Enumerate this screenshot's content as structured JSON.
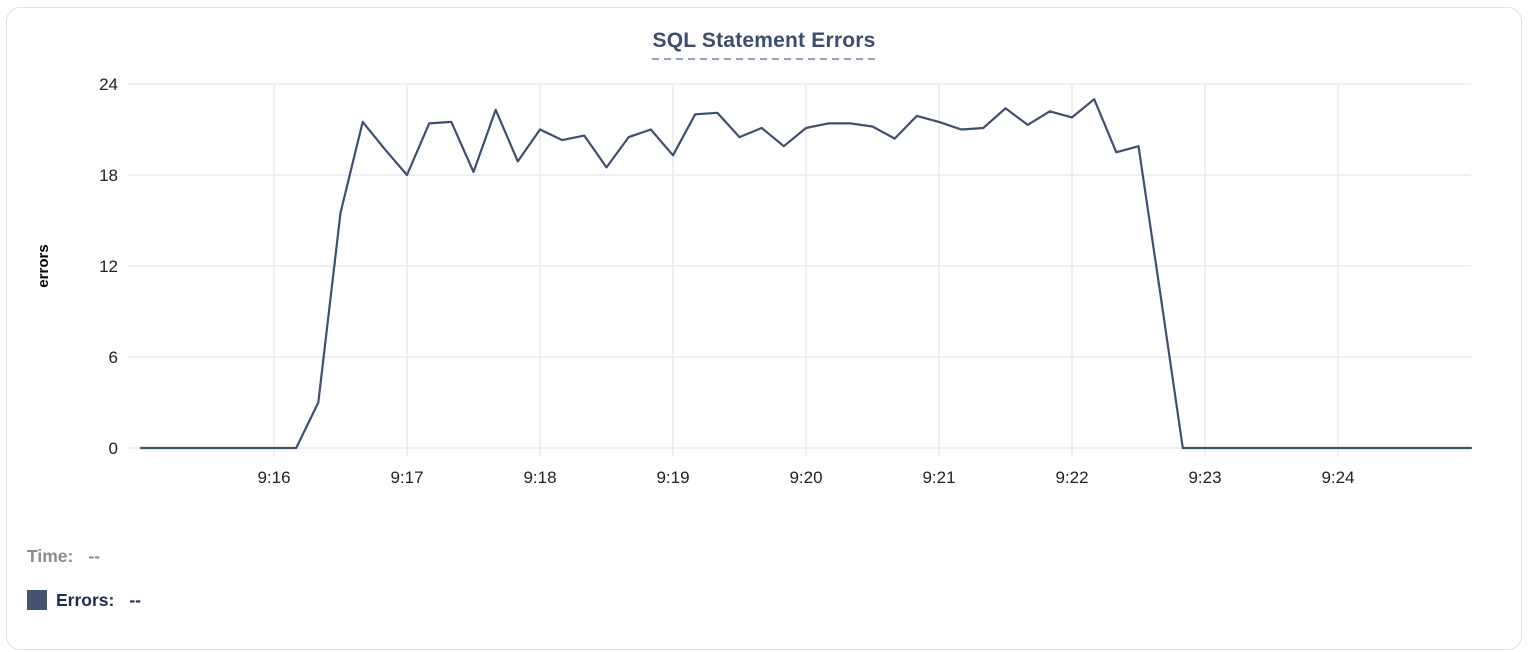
{
  "chart_data": {
    "type": "line",
    "title": "SQL Statement Errors",
    "xlabel": "",
    "ylabel": "errors",
    "ylim": [
      0,
      24
    ],
    "y_ticks": [
      0,
      6,
      12,
      18,
      24
    ],
    "x_range": [
      "9:15:00",
      "9:25:00"
    ],
    "x_tick_labels": [
      "9:16",
      "9:17",
      "9:18",
      "9:19",
      "9:20",
      "9:21",
      "9:22",
      "9:23",
      "9:24"
    ],
    "grid": "on",
    "interval_seconds": 10,
    "series": [
      {
        "name": "Errors",
        "x": [
          "9:15:00",
          "9:15:10",
          "9:15:20",
          "9:15:30",
          "9:15:40",
          "9:15:50",
          "9:16:00",
          "9:16:10",
          "9:16:20",
          "9:16:30",
          "9:16:40",
          "9:16:50",
          "9:17:00",
          "9:17:10",
          "9:17:20",
          "9:17:30",
          "9:17:40",
          "9:17:50",
          "9:18:00",
          "9:18:10",
          "9:18:20",
          "9:18:30",
          "9:18:40",
          "9:18:50",
          "9:19:00",
          "9:19:10",
          "9:19:20",
          "9:19:30",
          "9:19:40",
          "9:19:50",
          "9:20:00",
          "9:20:10",
          "9:20:20",
          "9:20:30",
          "9:20:40",
          "9:20:50",
          "9:21:00",
          "9:21:10",
          "9:21:20",
          "9:21:30",
          "9:21:40",
          "9:21:50",
          "9:22:00",
          "9:22:10",
          "9:22:20",
          "9:22:30",
          "9:22:40",
          "9:22:50",
          "9:23:00",
          "9:23:10",
          "9:23:20",
          "9:23:30",
          "9:23:40",
          "9:23:50",
          "9:24:00",
          "9:24:10",
          "9:24:20",
          "9:24:30",
          "9:24:40",
          "9:24:50",
          "9:25:00"
        ],
        "values": [
          0,
          0,
          0,
          0,
          0,
          0,
          0,
          0,
          3,
          15.5,
          21.5,
          19.7,
          18,
          21.4,
          21.5,
          18.2,
          22.3,
          18.9,
          21,
          20.3,
          20.6,
          18.5,
          20.5,
          21,
          19.3,
          22,
          22.1,
          20.5,
          21.1,
          19.9,
          21.1,
          21.4,
          21.4,
          21.2,
          20.4,
          21.9,
          21.5,
          21,
          21.1,
          22.4,
          21.3,
          22.2,
          21.8,
          23,
          19.5,
          19.9,
          10,
          0,
          0,
          0,
          0,
          0,
          0,
          0,
          0,
          0,
          0,
          0,
          0,
          0,
          0
        ]
      }
    ]
  },
  "legend": {
    "time_label": "Time:",
    "time_value": "--",
    "errors_label": "Errors:",
    "errors_value": "--"
  },
  "colors": {
    "series_line": "#3f4f6e",
    "swatch": "#44536f",
    "title_text": "#3d4d6e",
    "title_underline": "#98a5c0",
    "gridline": "#ececee",
    "axis_text": "#202124",
    "time_text": "#8a8b91",
    "errors_text": "#1f2c51",
    "card_border": "#dfe0e3"
  }
}
